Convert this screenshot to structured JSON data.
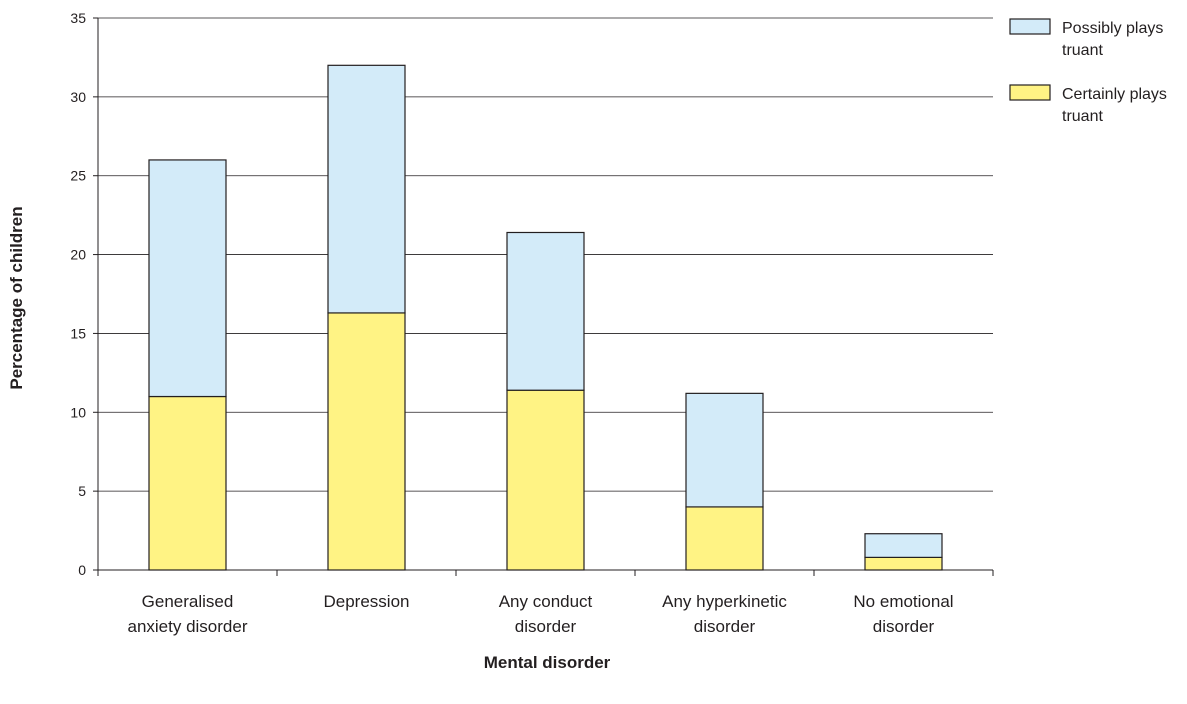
{
  "chart_data": {
    "type": "bar",
    "stacked": true,
    "title": "",
    "xlabel": "Mental disorder",
    "ylabel": "Percentage of children",
    "ylim": [
      0,
      35
    ],
    "yticks": [
      0,
      5,
      10,
      15,
      20,
      25,
      30,
      35
    ],
    "grid": true,
    "legend_position": "top-right",
    "categories": [
      [
        "Generalised",
        "anxiety disorder"
      ],
      [
        "Depression"
      ],
      [
        "Any conduct",
        "disorder"
      ],
      [
        "Any hyperkinetic",
        "disorder"
      ],
      [
        "No emotional",
        "disorder"
      ]
    ],
    "series": [
      {
        "name": [
          "Certainly plays",
          "truant"
        ],
        "color": "#fff384",
        "values": [
          11.0,
          16.3,
          11.4,
          4.0,
          0.8
        ]
      },
      {
        "name": [
          "Possibly plays",
          "truant"
        ],
        "color": "#d3ebf9",
        "values": [
          15.0,
          15.7,
          10.0,
          7.2,
          1.5
        ]
      }
    ],
    "legend_order": [
      1,
      0
    ]
  }
}
